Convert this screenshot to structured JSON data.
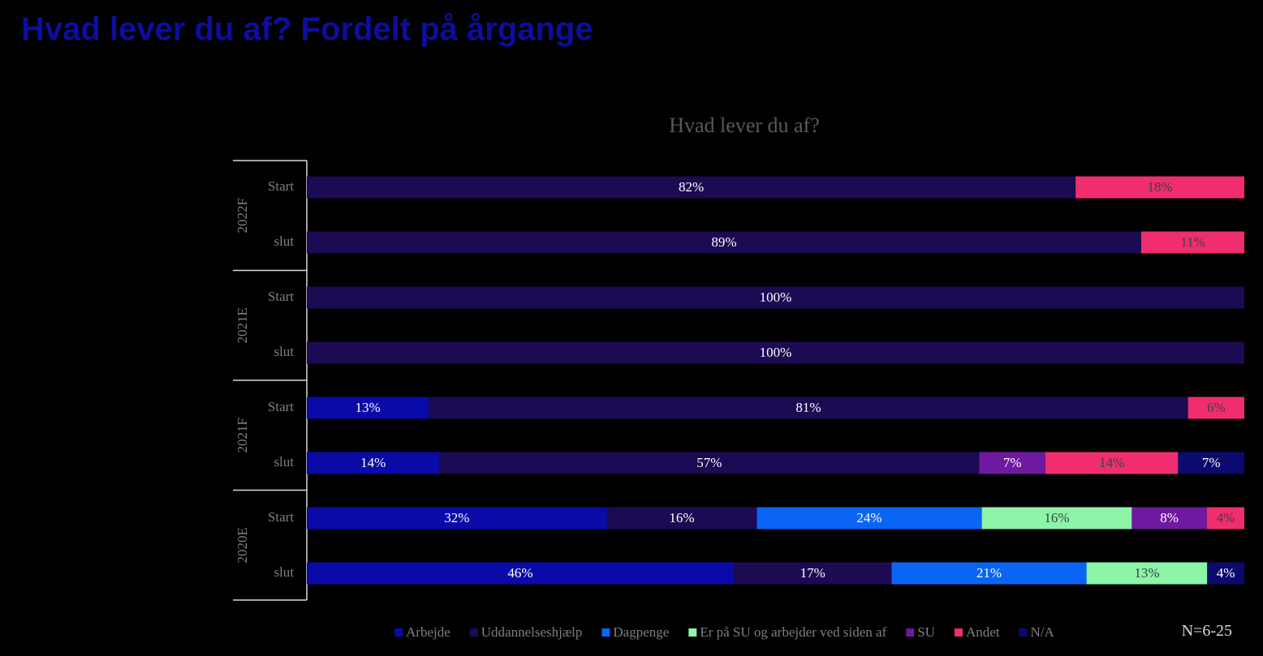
{
  "page_title": "Hvad lever du af? Fordelt på årgange",
  "footnote": "N=6-25",
  "chart_data": {
    "type": "bar",
    "orientation": "horizontal",
    "stacked": true,
    "percent_stacked": true,
    "title": "Hvad lever du af?",
    "xlim": [
      0,
      100
    ],
    "grid": false,
    "legend_position": "bottom",
    "groups": [
      {
        "label": "2022F",
        "rows": [
          {
            "label": "Start",
            "values": [
              0,
              82,
              0,
              0,
              0,
              18,
              0
            ]
          },
          {
            "label": "slut",
            "values": [
              0,
              89,
              0,
              0,
              0,
              11,
              0
            ]
          }
        ]
      },
      {
        "label": "2021E",
        "rows": [
          {
            "label": "Start",
            "values": [
              0,
              100,
              0,
              0,
              0,
              0,
              0
            ]
          },
          {
            "label": "slut",
            "values": [
              0,
              100,
              0,
              0,
              0,
              0,
              0
            ]
          }
        ]
      },
      {
        "label": "2021F",
        "rows": [
          {
            "label": "Start",
            "values": [
              13,
              81,
              0,
              0,
              0,
              6,
              0
            ]
          },
          {
            "label": "slut",
            "values": [
              14,
              57,
              0,
              0,
              7,
              14,
              7
            ]
          }
        ]
      },
      {
        "label": "2020E",
        "rows": [
          {
            "label": "Start",
            "values": [
              32,
              16,
              24,
              16,
              8,
              4,
              0
            ]
          },
          {
            "label": "slut",
            "values": [
              46,
              17,
              21,
              13,
              0,
              0,
              4
            ]
          }
        ]
      }
    ],
    "series": [
      {
        "name": "Arbejde",
        "color": "#0a0aa8",
        "label_color": "#ffffff"
      },
      {
        "name": "Uddannelseshjælp",
        "color": "#1c0a52",
        "label_color": "#ffffff"
      },
      {
        "name": "Dagpenge",
        "color": "#0a64f5",
        "label_color": "#ffffff"
      },
      {
        "name": "Er på SU og arbejder ved siden af",
        "color": "#8cf5a8",
        "label_color": "#404040"
      },
      {
        "name": "SU",
        "color": "#6e19a0",
        "label_color": "#ffffff"
      },
      {
        "name": "Andet",
        "color": "#f02d6e",
        "label_color": "#404040"
      },
      {
        "name": "N/A",
        "color": "#0a0a6e",
        "label_color": "#ffffff"
      }
    ]
  }
}
